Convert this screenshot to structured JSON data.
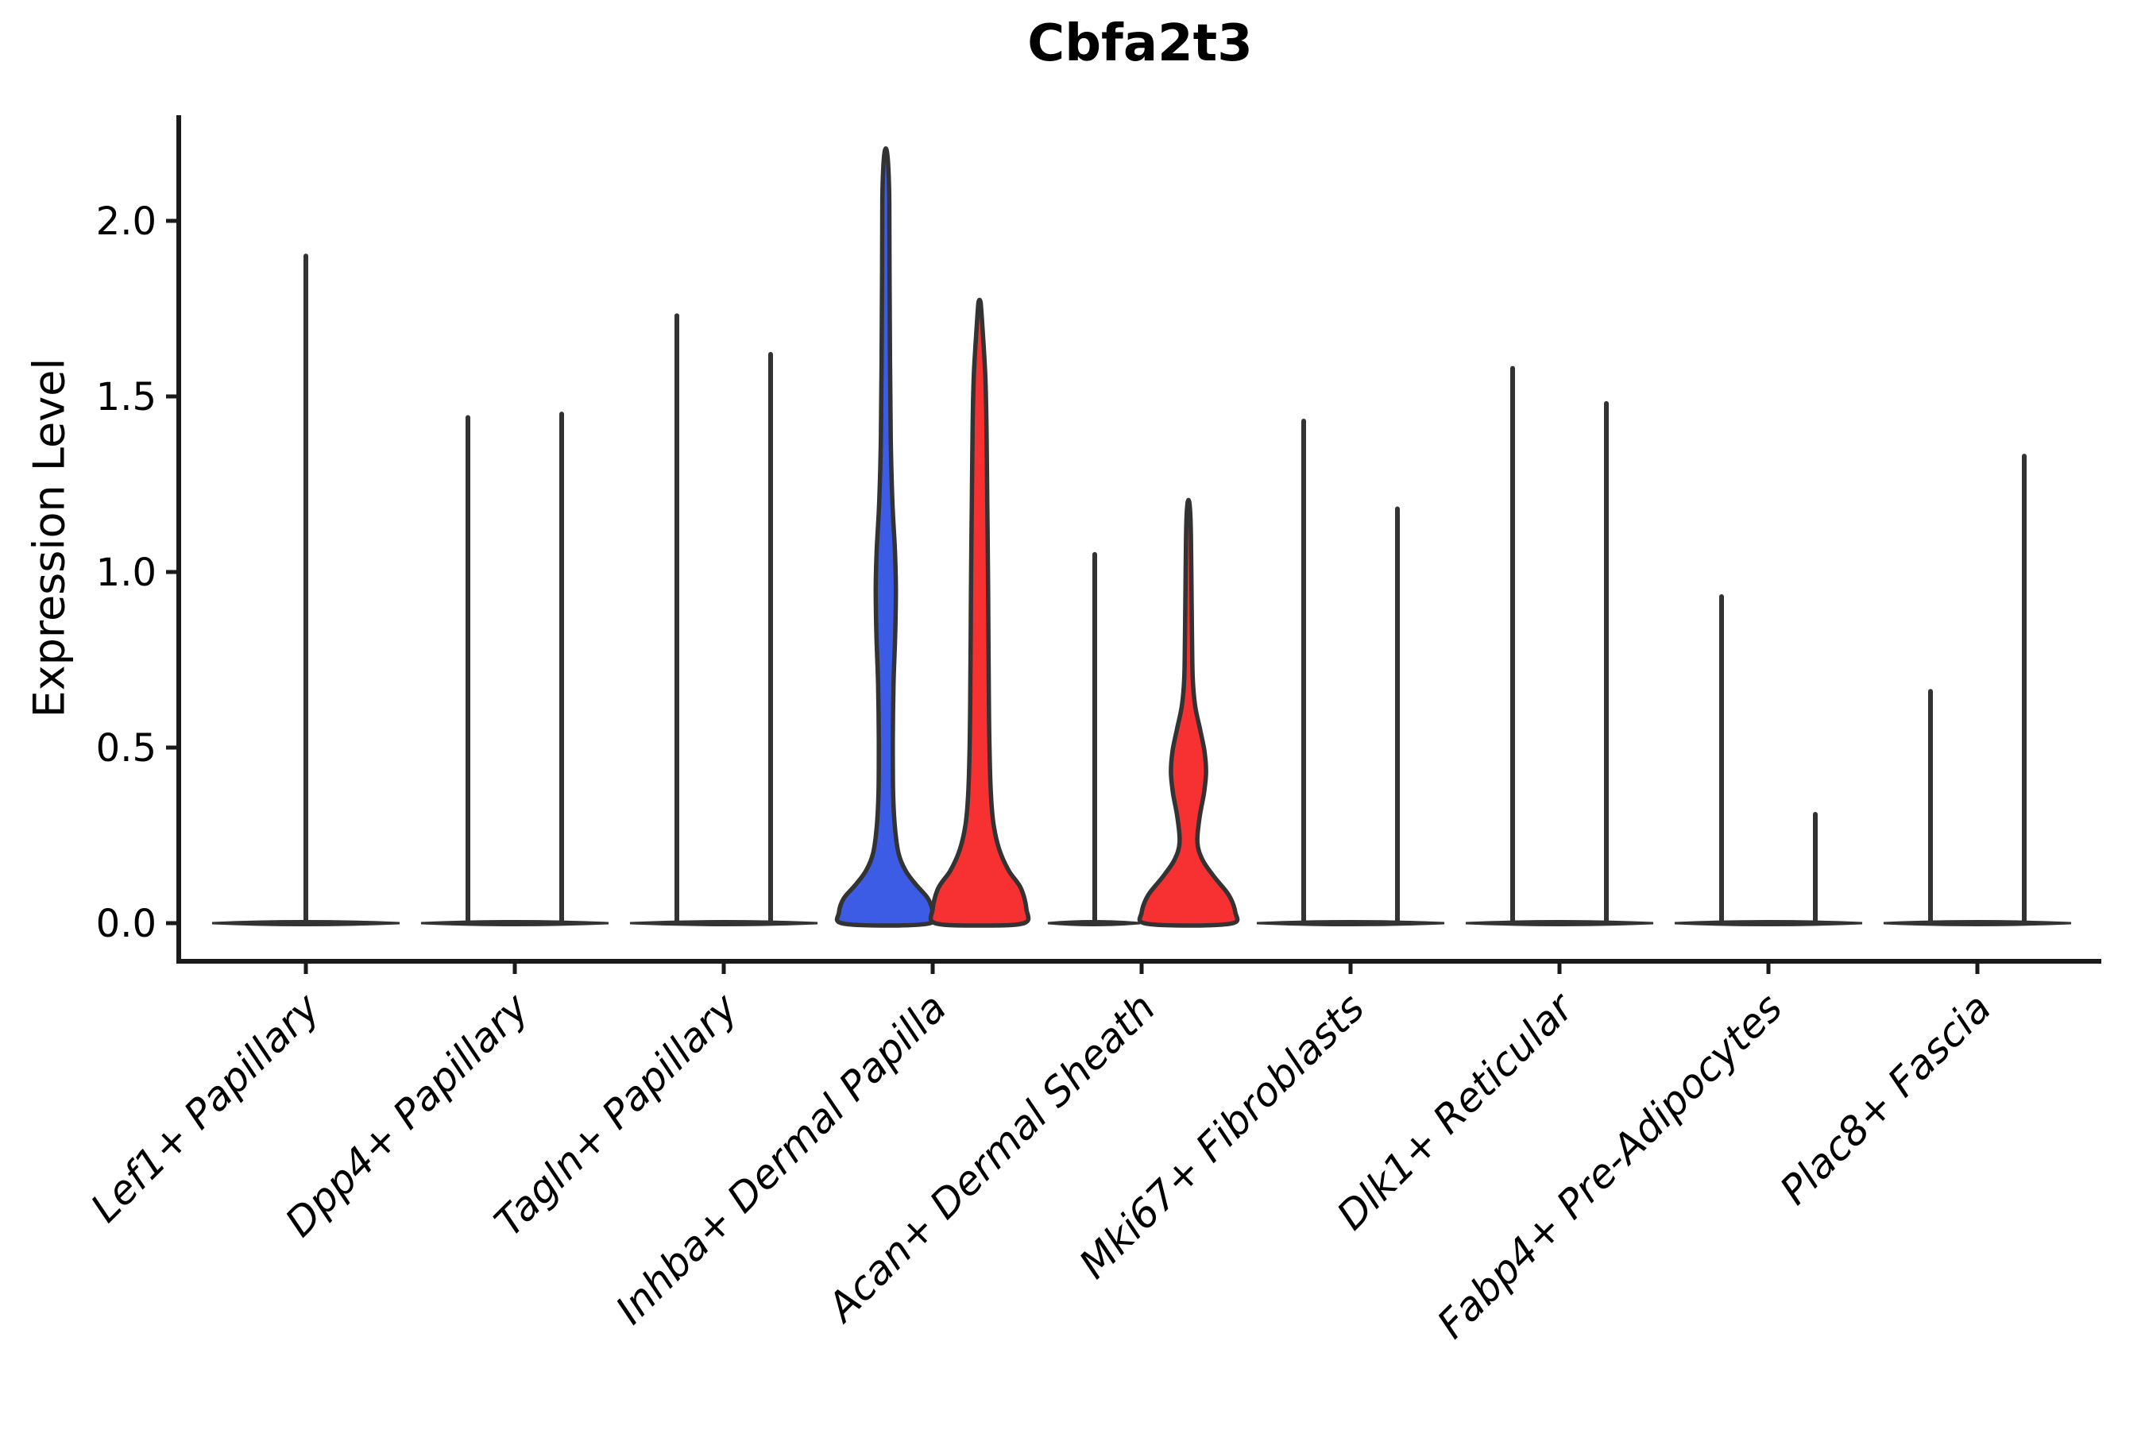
{
  "chart_data": {
    "type": "violin",
    "title": "Cbfa2t3",
    "xlabel": "",
    "ylabel": "Expression Level",
    "ylim": [
      0,
      2.3
    ],
    "grid": false,
    "legend": "none",
    "split_violin": true,
    "yticks": [
      {
        "value": 0.0,
        "label": "0.0"
      },
      {
        "value": 0.5,
        "label": "0.5"
      },
      {
        "value": 1.0,
        "label": "1.0"
      },
      {
        "value": 1.5,
        "label": "1.5"
      },
      {
        "value": 2.0,
        "label": "2.0"
      }
    ],
    "categories": [
      "Lef1+ Papillary",
      "Dpp4+ Papillary",
      "Tagln+ Papillary",
      "Inhba+ Dermal Papilla",
      "Acan+ Dermal Sheath",
      "Mki67+ Fibroblasts",
      "Dlk1+ Reticular",
      "Fabp4+ Pre-Adipocytes",
      "Plac8+ Fascia"
    ],
    "colors": {
      "blue_fill": "#3C5CE5",
      "red_fill": "#F73131",
      "outline": "#333333",
      "axis": "#1a1a1a"
    },
    "violins": [
      {
        "category": "Lef1+ Papillary",
        "items": [
          {
            "side": "center",
            "style": "spike",
            "color": "outline",
            "max": 1.9
          }
        ]
      },
      {
        "category": "Dpp4+ Papillary",
        "items": [
          {
            "side": "left",
            "style": "spike",
            "color": "outline",
            "max": 1.44
          },
          {
            "side": "right",
            "style": "spike",
            "color": "outline",
            "max": 1.45
          }
        ]
      },
      {
        "category": "Tagln+ Papillary",
        "items": [
          {
            "side": "left",
            "style": "spike",
            "color": "outline",
            "max": 1.73
          },
          {
            "side": "right",
            "style": "spike",
            "color": "outline",
            "max": 1.62
          }
        ]
      },
      {
        "category": "Inhba+ Dermal Papilla",
        "items": [
          {
            "side": "left",
            "style": "violin",
            "color": "blue_fill",
            "max": 2.2,
            "profile": [
              [
                0,
                0.95
              ],
              [
                0.03,
                1.0
              ],
              [
                0.07,
                0.9
              ],
              [
                0.11,
                0.64
              ],
              [
                0.15,
                0.42
              ],
              [
                0.2,
                0.27
              ],
              [
                0.28,
                0.19
              ],
              [
                0.38,
                0.155
              ],
              [
                0.52,
                0.15
              ],
              [
                0.68,
                0.165
              ],
              [
                0.82,
                0.2
              ],
              [
                0.95,
                0.215
              ],
              [
                1.06,
                0.195
              ],
              [
                1.2,
                0.14
              ],
              [
                1.38,
                0.105
              ],
              [
                1.6,
                0.09
              ],
              [
                1.85,
                0.08
              ],
              [
                2.05,
                0.075
              ],
              [
                2.15,
                0.055
              ],
              [
                2.2,
                0.02
              ]
            ]
          },
          {
            "side": "right",
            "style": "violin",
            "color": "red_fill",
            "max": 1.77,
            "profile": [
              [
                0,
                0.95
              ],
              [
                0.04,
                1.0
              ],
              [
                0.1,
                0.88
              ],
              [
                0.15,
                0.62
              ],
              [
                0.21,
                0.42
              ],
              [
                0.28,
                0.3
              ],
              [
                0.36,
                0.245
              ],
              [
                0.48,
                0.215
              ],
              [
                0.62,
                0.2
              ],
              [
                0.8,
                0.19
              ],
              [
                1.0,
                0.18
              ],
              [
                1.2,
                0.165
              ],
              [
                1.4,
                0.15
              ],
              [
                1.55,
                0.125
              ],
              [
                1.65,
                0.085
              ],
              [
                1.73,
                0.045
              ],
              [
                1.77,
                0.02
              ]
            ]
          }
        ]
      },
      {
        "category": "Acan+ Dermal Sheath",
        "items": [
          {
            "side": "left",
            "style": "spike",
            "color": "outline",
            "max": 1.05
          },
          {
            "side": "right",
            "style": "violin",
            "color": "red_fill",
            "max": 1.2,
            "profile": [
              [
                0,
                0.95
              ],
              [
                0.03,
                1.0
              ],
              [
                0.08,
                0.86
              ],
              [
                0.13,
                0.56
              ],
              [
                0.18,
                0.3
              ],
              [
                0.23,
                0.19
              ],
              [
                0.3,
                0.235
              ],
              [
                0.37,
                0.33
              ],
              [
                0.43,
                0.375
              ],
              [
                0.49,
                0.34
              ],
              [
                0.55,
                0.25
              ],
              [
                0.62,
                0.14
              ],
              [
                0.7,
                0.09
              ],
              [
                0.82,
                0.075
              ],
              [
                0.95,
                0.065
              ],
              [
                1.08,
                0.055
              ],
              [
                1.16,
                0.04
              ],
              [
                1.2,
                0.015
              ]
            ]
          }
        ]
      },
      {
        "category": "Mki67+ Fibroblasts",
        "items": [
          {
            "side": "left",
            "style": "spike",
            "color": "outline",
            "max": 1.43
          },
          {
            "side": "right",
            "style": "spike",
            "color": "outline",
            "max": 1.18
          }
        ]
      },
      {
        "category": "Dlk1+ Reticular",
        "items": [
          {
            "side": "left",
            "style": "spike",
            "color": "outline",
            "max": 1.58
          },
          {
            "side": "right",
            "style": "spike",
            "color": "outline",
            "max": 1.48
          }
        ]
      },
      {
        "category": "Fabp4+ Pre-Adipocytes",
        "items": [
          {
            "side": "left",
            "style": "spike",
            "color": "outline",
            "max": 0.93
          },
          {
            "side": "right",
            "style": "spike",
            "color": "outline",
            "max": 0.31
          }
        ]
      },
      {
        "category": "Plac8+ Fascia",
        "items": [
          {
            "side": "left",
            "style": "spike",
            "color": "outline",
            "max": 0.66
          },
          {
            "side": "right",
            "style": "spike",
            "color": "outline",
            "max": 1.33
          }
        ]
      }
    ]
  }
}
